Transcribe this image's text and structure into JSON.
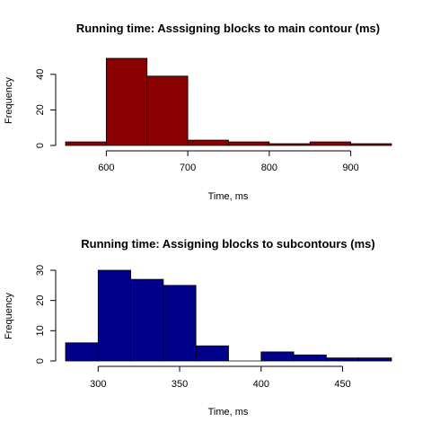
{
  "chart_data": [
    {
      "type": "bar",
      "title": "Running time: Asssigning blocks to main contour (ms)",
      "xlabel": "Time, ms",
      "ylabel": "Frequency",
      "bar_color": "#8B0000",
      "bins": [
        [
          550,
          600
        ],
        [
          600,
          650
        ],
        [
          650,
          700
        ],
        [
          700,
          750
        ],
        [
          750,
          800
        ],
        [
          800,
          850
        ],
        [
          850,
          900
        ],
        [
          900,
          950
        ]
      ],
      "values": [
        2,
        49,
        39,
        3,
        2,
        1,
        2,
        1
      ],
      "xlim": [
        550,
        950
      ],
      "ylim": [
        0,
        50
      ],
      "xticks": [
        600,
        700,
        800,
        900
      ],
      "yticks": [
        0,
        20,
        40
      ],
      "grid": false
    },
    {
      "type": "bar",
      "title": "Running time: Assigning blocks to subcontours (ms)",
      "xlabel": "Time, ms",
      "ylabel": "Frequency",
      "bar_color": "#00008B",
      "bins": [
        [
          280,
          300
        ],
        [
          300,
          320
        ],
        [
          320,
          340
        ],
        [
          340,
          360
        ],
        [
          360,
          380
        ],
        [
          380,
          400
        ],
        [
          400,
          420
        ],
        [
          420,
          440
        ],
        [
          440,
          460
        ],
        [
          460,
          480
        ]
      ],
      "values": [
        6,
        30,
        27,
        25,
        5,
        0,
        3,
        2,
        1,
        1
      ],
      "xlim": [
        280,
        480
      ],
      "ylim": [
        0,
        30
      ],
      "xticks": [
        300,
        350,
        400,
        450
      ],
      "yticks": [
        0,
        10,
        20,
        30
      ],
      "grid": false
    }
  ]
}
